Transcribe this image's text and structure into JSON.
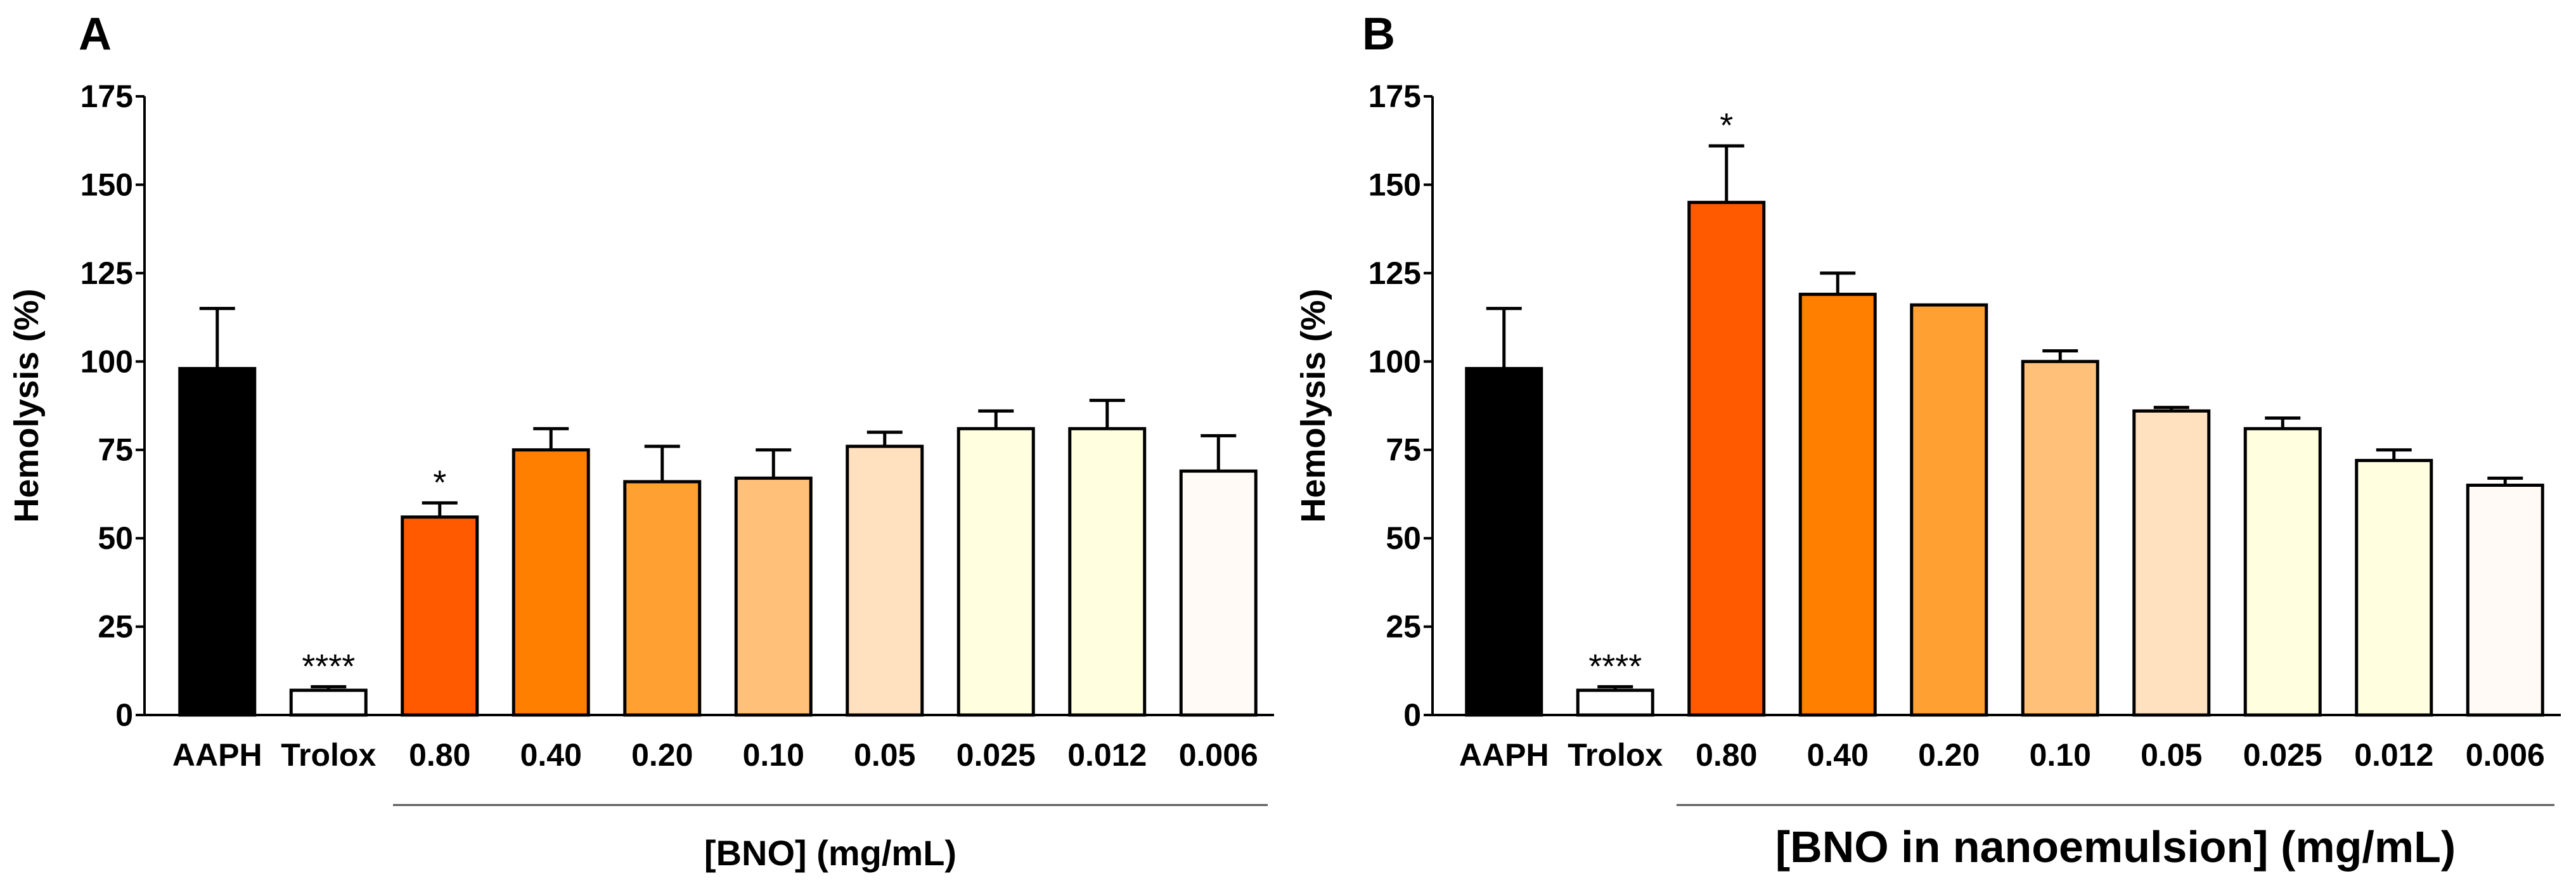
{
  "chart_data": [
    {
      "type": "bar",
      "panel_label": "A",
      "title": "",
      "ylabel": "Hemolysis (%)",
      "xlabel": "[BNO] (mg/mL)",
      "ylim": [
        0,
        175
      ],
      "yticks": [
        "0",
        "25",
        "50",
        "75",
        "100",
        "125",
        "150",
        "175"
      ],
      "categories": [
        "AAPH",
        "Trolox",
        "0.80",
        "0.40",
        "0.20",
        "0.10",
        "0.05",
        "0.025",
        "0.012",
        "0.006"
      ],
      "values": [
        98,
        7,
        56,
        75,
        66,
        67,
        76,
        81,
        81,
        69
      ],
      "errors": [
        17,
        1,
        4,
        6,
        10,
        8,
        4,
        5,
        8,
        10
      ],
      "colors": [
        "#000000",
        "#ffffff",
        "#ff5a00",
        "#ff7f00",
        "#ffa033",
        "#ffc07a",
        "#ffe0bf",
        "#ffffe0",
        "#ffffe0",
        "#fffaf5"
      ],
      "significance": [
        "",
        "****",
        "*",
        "",
        "",
        "",
        "",
        "",
        "",
        ""
      ],
      "grid": false
    },
    {
      "type": "bar",
      "panel_label": "B",
      "title": "",
      "ylabel": "Hemolysis (%)",
      "xlabel": "[BNO in nanoemulsion] (mg/mL)",
      "ylim": [
        0,
        175
      ],
      "yticks": [
        "0",
        "25",
        "50",
        "75",
        "100",
        "125",
        "150",
        "175"
      ],
      "categories": [
        "AAPH",
        "Trolox",
        "0.80",
        "0.40",
        "0.20",
        "0.10",
        "0.05",
        "0.025",
        "0.012",
        "0.006"
      ],
      "values": [
        98,
        7,
        145,
        119,
        116,
        100,
        86,
        81,
        72,
        65
      ],
      "errors": [
        17,
        1,
        16,
        6,
        0,
        3,
        1,
        3,
        3,
        2
      ],
      "colors": [
        "#000000",
        "#ffffff",
        "#ff5a00",
        "#ff7f00",
        "#ffa033",
        "#ffc07a",
        "#ffe0bf",
        "#ffffe0",
        "#ffffe0",
        "#fffaf5"
      ],
      "significance": [
        "",
        "****",
        "*",
        "",
        "",
        "",
        "",
        "",
        "",
        ""
      ],
      "grid": false
    }
  ]
}
